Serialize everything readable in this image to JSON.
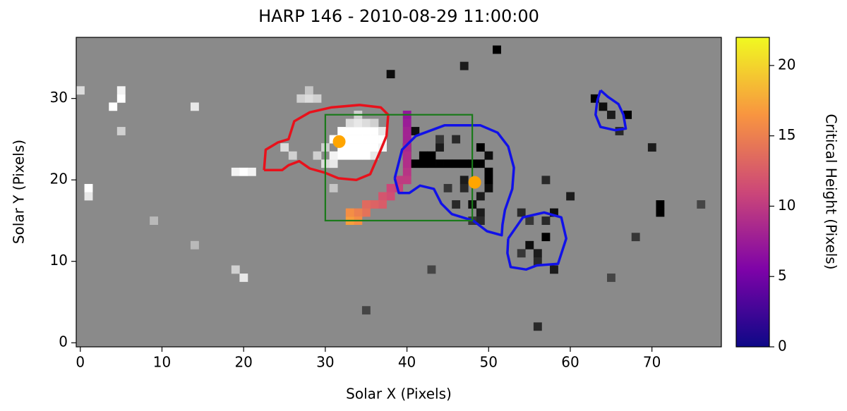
{
  "chart_data": {
    "type": "heatmap",
    "title": "HARP 146 - 2010-08-29 11:00:00",
    "x_label": "Solar X (Pixels)",
    "y_label": "Solar Y (Pixels)",
    "xlim": [
      -0.5,
      78.5
    ],
    "ylim": [
      -0.5,
      37.5
    ],
    "xticks": [
      0,
      10,
      20,
      30,
      40,
      50,
      60,
      70
    ],
    "yticks": [
      0,
      10,
      20,
      30
    ],
    "background_color": "#8a8a8a",
    "pixel_lim": [
      -1,
      1
    ],
    "pixels": [
      [
        32,
        23,
        1
      ],
      [
        33,
        23,
        1
      ],
      [
        34,
        23,
        1
      ],
      [
        35,
        23,
        1
      ],
      [
        36,
        23,
        0.8
      ],
      [
        32,
        24,
        1
      ],
      [
        33,
        24,
        1
      ],
      [
        34,
        24,
        1
      ],
      [
        35,
        24,
        1
      ],
      [
        36,
        24,
        1
      ],
      [
        37,
        24,
        0.9
      ],
      [
        31,
        25,
        1
      ],
      [
        32,
        25,
        1
      ],
      [
        33,
        25,
        1
      ],
      [
        34,
        25,
        1
      ],
      [
        35,
        25,
        1
      ],
      [
        36,
        25,
        1
      ],
      [
        37,
        25,
        1
      ],
      [
        32,
        26,
        1
      ],
      [
        33,
        26,
        1
      ],
      [
        34,
        26,
        1
      ],
      [
        35,
        26,
        1
      ],
      [
        36,
        26,
        1
      ],
      [
        37,
        26,
        0.8
      ],
      [
        33,
        27,
        0.7
      ],
      [
        34,
        27,
        0.8
      ],
      [
        35,
        27,
        0.7
      ],
      [
        36,
        27,
        0.6
      ],
      [
        34,
        28,
        0.6
      ],
      [
        30,
        22,
        0.7
      ],
      [
        31,
        22,
        0.8
      ],
      [
        31,
        23,
        0.9
      ],
      [
        30,
        24,
        0.6
      ],
      [
        29,
        23,
        0.6
      ],
      [
        27,
        30,
        0.6
      ],
      [
        28,
        30,
        0.7
      ],
      [
        29,
        30,
        0.6
      ],
      [
        28,
        31,
        0.5
      ],
      [
        25,
        24,
        0.7
      ],
      [
        26,
        23,
        0.6
      ],
      [
        5,
        30,
        1
      ],
      [
        5,
        31,
        0.9
      ],
      [
        4,
        29,
        1
      ],
      [
        0,
        31,
        0.7
      ],
      [
        1,
        19,
        1
      ],
      [
        1,
        18,
        0.8
      ],
      [
        14,
        29,
        0.8
      ],
      [
        5,
        26,
        0.6
      ],
      [
        19,
        21,
        0.9
      ],
      [
        20,
        21,
        1
      ],
      [
        21,
        21,
        0.9
      ],
      [
        20,
        8,
        0.8
      ],
      [
        19,
        9,
        0.6
      ],
      [
        31,
        19,
        0.5
      ],
      [
        14,
        12,
        0.4
      ],
      [
        9,
        15,
        0.4
      ],
      [
        51,
        36,
        -1
      ],
      [
        38,
        33,
        -0.9
      ],
      [
        47,
        34,
        -0.8
      ],
      [
        41,
        26,
        -0.9
      ],
      [
        42,
        22,
        -1
      ],
      [
        43,
        22,
        -1
      ],
      [
        44,
        22,
        -1
      ],
      [
        45,
        22,
        -1
      ],
      [
        46,
        22,
        -1
      ],
      [
        47,
        22,
        -1
      ],
      [
        48,
        22,
        -1
      ],
      [
        49,
        22,
        -1
      ],
      [
        41,
        22,
        -1
      ],
      [
        42,
        23,
        -1
      ],
      [
        43,
        23,
        -1
      ],
      [
        49,
        24,
        -1
      ],
      [
        50,
        23,
        -0.9
      ],
      [
        50,
        21,
        -1
      ],
      [
        50,
        20,
        -1
      ],
      [
        50,
        19,
        -0.9
      ],
      [
        49,
        18,
        -0.8
      ],
      [
        48,
        17,
        -0.9
      ],
      [
        49,
        16,
        -0.8
      ],
      [
        46,
        25,
        -0.7
      ],
      [
        44,
        24,
        -0.8
      ],
      [
        44,
        25,
        -0.6
      ],
      [
        40,
        24,
        -0.9
      ],
      [
        40,
        23,
        -0.8
      ],
      [
        47,
        20,
        -0.8
      ],
      [
        47,
        19,
        -0.7
      ],
      [
        45,
        19,
        -0.6
      ],
      [
        46,
        17,
        -0.7
      ],
      [
        48,
        15,
        -0.6
      ],
      [
        49,
        15,
        -0.7
      ],
      [
        55,
        12,
        -0.9
      ],
      [
        56,
        11,
        -0.8
      ],
      [
        57,
        13,
        -1
      ],
      [
        56,
        10,
        -0.7
      ],
      [
        58,
        9,
        -0.8
      ],
      [
        54,
        11,
        -0.6
      ],
      [
        57,
        15,
        -0.7
      ],
      [
        63,
        30,
        -1
      ],
      [
        64,
        29,
        -0.9
      ],
      [
        65,
        28,
        -0.8
      ],
      [
        67,
        28,
        -1
      ],
      [
        66,
        26,
        -0.7
      ],
      [
        71,
        16,
        -1
      ],
      [
        71,
        17,
        -1
      ],
      [
        70,
        24,
        -0.8
      ],
      [
        60,
        18,
        -0.8
      ],
      [
        58,
        16,
        -0.9
      ],
      [
        57,
        20,
        -0.7
      ],
      [
        55,
        15,
        -0.6
      ],
      [
        54,
        16,
        -0.7
      ],
      [
        56,
        2,
        -0.7
      ],
      [
        35,
        4,
        -0.5
      ],
      [
        43,
        9,
        -0.5
      ],
      [
        68,
        13,
        -0.6
      ],
      [
        76,
        17,
        -0.5
      ],
      [
        65,
        8,
        -0.5
      ]
    ],
    "contours": [
      {
        "color": "#e8111b",
        "x": [
          22.5,
          22.7,
          24.2,
          25.5,
          26.2,
          28.1,
          30.7,
          34.2,
          36.8,
          37.7,
          37.5,
          36.8,
          35.5,
          33.8,
          31.6,
          29.9,
          28.1,
          26.8,
          25.5,
          24.7,
          23.4,
          22.5
        ],
        "y": [
          21.2,
          23.7,
          24.6,
          25.0,
          27.2,
          28.3,
          28.9,
          29.2,
          28.9,
          28.0,
          25.4,
          23.7,
          20.7,
          20.0,
          20.2,
          20.9,
          21.4,
          22.3,
          21.8,
          21.2,
          21.2,
          21.2
        ]
      },
      {
        "color": "#1111e8",
        "x": [
          38.5,
          39.4,
          41.1,
          44.6,
          49.0,
          51.1,
          52.4,
          53.1,
          52.9,
          52.0,
          51.7,
          51.6,
          49.8,
          48.1,
          45.5,
          44.2,
          43.3,
          41.6,
          40.3,
          39.0,
          38.5
        ],
        "y": [
          20.2,
          23.7,
          25.4,
          26.7,
          26.7,
          25.8,
          24.1,
          21.5,
          18.9,
          16.3,
          14.5,
          13.2,
          13.7,
          15.0,
          15.8,
          17.1,
          18.9,
          19.3,
          18.4,
          18.4,
          20.2
        ]
      },
      {
        "color": "#1111e8",
        "x": [
          52.4,
          54.2,
          56.8,
          58.9,
          59.5,
          58.5,
          55.9,
          54.6,
          52.7,
          52.3,
          52.4
        ],
        "y": [
          12.8,
          15.4,
          16.0,
          15.4,
          12.8,
          9.7,
          9.5,
          9.0,
          9.3,
          11.0,
          12.8
        ]
      },
      {
        "color": "#1111e8",
        "x": [
          63.7,
          64.6,
          65.9,
          66.5,
          66.8,
          65.5,
          63.7,
          63.1,
          63.3,
          63.7
        ],
        "y": [
          31.0,
          30.2,
          29.3,
          28.0,
          26.3,
          26.1,
          26.5,
          28.0,
          29.7,
          31.0
        ]
      }
    ],
    "box": {
      "color": "#1a7a1a",
      "x": [
        30,
        48
      ],
      "y": [
        15,
        28
      ]
    },
    "points": {
      "color": "#ffa500",
      "x": [
        31.7,
        48.3
      ],
      "y": [
        24.7,
        19.7
      ]
    },
    "heights": [
      [
        40,
        28,
        7
      ],
      [
        40,
        27,
        7.5
      ],
      [
        40,
        26,
        8
      ],
      [
        40,
        25,
        8
      ],
      [
        40,
        24,
        8.5
      ],
      [
        40,
        23,
        9
      ],
      [
        40,
        22,
        9
      ],
      [
        40,
        21,
        9.5
      ],
      [
        40,
        20,
        10
      ],
      [
        39,
        20,
        10
      ],
      [
        39,
        19,
        10.5
      ],
      [
        38,
        19,
        11
      ],
      [
        38,
        18,
        11.5
      ],
      [
        37,
        18,
        12
      ],
      [
        37,
        17,
        12.5
      ],
      [
        36,
        17,
        13
      ],
      [
        35,
        17,
        13.5
      ],
      [
        35,
        16,
        14
      ],
      [
        34,
        16,
        15
      ],
      [
        34,
        15,
        16
      ],
      [
        33,
        15,
        17
      ],
      [
        33,
        16,
        16
      ]
    ],
    "colorbar": {
      "label": "Critical Height (Pixels)",
      "lim": [
        0,
        22
      ],
      "ticks": [
        0,
        5,
        10,
        15,
        20
      ],
      "colors": [
        "#0d0887",
        "#7e03a8",
        "#cc4778",
        "#f89540",
        "#f0f921"
      ]
    }
  }
}
